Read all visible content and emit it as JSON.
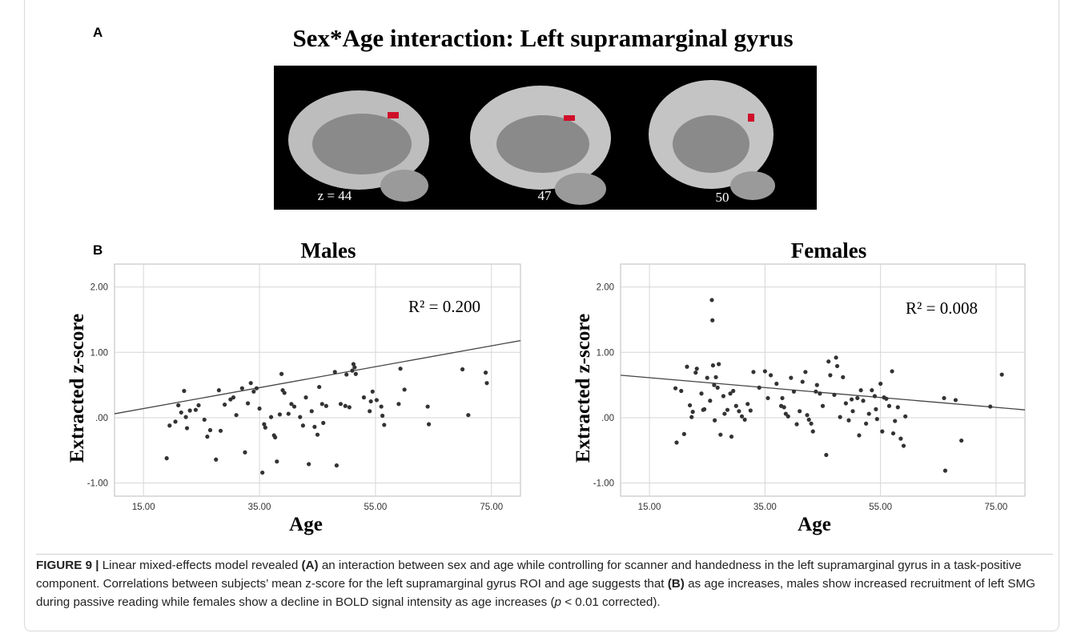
{
  "panel_a": {
    "label": "A",
    "title": "Sex*Age interaction: Left supramarginal gyrus",
    "slice_labels": [
      "z = 44",
      "47",
      "50"
    ]
  },
  "panel_b": {
    "label": "B"
  },
  "chart_data": [
    {
      "type": "scatter",
      "title": "Males",
      "x_label": "Age",
      "y_label": "Extracted z-score",
      "annotation": "R² = 0.200",
      "color": "#333333",
      "grid": true,
      "xlim": [
        10,
        80
      ],
      "xticks": [
        {
          "value": 15,
          "label": "15.00"
        },
        {
          "value": 35,
          "label": "35.00"
        },
        {
          "value": 55,
          "label": "55.00"
        },
        {
          "value": 75,
          "label": "75.00"
        }
      ],
      "ylim": [
        -1.2,
        2.35
      ],
      "yticks": [
        {
          "value": -1,
          "label": "-1.00"
        },
        {
          "value": 0,
          "label": ".00"
        },
        {
          "value": 1,
          "label": "1.00"
        },
        {
          "value": 2,
          "label": "2.00"
        }
      ],
      "x": [
        19,
        19.5,
        20.5,
        21,
        21.5,
        22,
        22.3,
        22.5,
        23,
        24,
        24.5,
        25.5,
        26,
        26.5,
        27.5,
        28,
        28.3,
        29,
        30,
        30.5,
        31,
        32,
        32.5,
        33,
        33.5,
        34,
        34.5,
        35,
        35.5,
        35.8,
        36,
        37,
        37.5,
        37.7,
        38,
        38.5,
        38.8,
        39,
        39.3,
        40,
        40.5,
        41,
        42,
        42.5,
        43,
        43.5,
        44,
        44.5,
        45,
        45.3,
        45.8,
        46,
        46.5,
        48,
        48.3,
        49,
        49.8,
        50,
        50.5,
        51,
        51.2,
        51.4,
        51.6,
        53,
        54,
        54.2,
        54.5,
        55.2,
        56,
        56.2,
        56.5,
        59,
        59.3,
        60,
        64,
        64.2,
        70,
        71,
        74,
        74.2
      ],
      "values": [
        -0.62,
        -0.12,
        -0.06,
        0.19,
        0.08,
        0.41,
        0.01,
        -0.16,
        0.11,
        0.12,
        0.19,
        -0.03,
        -0.29,
        -0.19,
        -0.64,
        0.42,
        -0.2,
        0.2,
        0.28,
        0.31,
        0.04,
        0.45,
        -0.53,
        0.22,
        0.53,
        0.4,
        0.45,
        0.14,
        -0.84,
        -0.1,
        -0.15,
        0.01,
        -0.27,
        -0.3,
        -0.67,
        0.05,
        0.67,
        0.42,
        0.38,
        0.06,
        0.21,
        0.17,
        0.01,
        -0.12,
        0.31,
        -0.71,
        0.1,
        -0.14,
        -0.26,
        0.47,
        0.21,
        -0.08,
        0.18,
        0.7,
        -0.73,
        0.21,
        0.18,
        0.66,
        0.16,
        0.72,
        0.82,
        0.77,
        0.67,
        0.31,
        0.1,
        0.25,
        0.4,
        0.27,
        0.17,
        0.03,
        -0.11,
        0.21,
        0.75,
        0.43,
        0.17,
        -0.1,
        0.74,
        0.04,
        0.69,
        0.53
      ],
      "trend_line": {
        "x": [
          10,
          80
        ],
        "values": [
          0.06,
          1.18
        ]
      }
    },
    {
      "type": "scatter",
      "title": "Females",
      "x_label": "Age",
      "y_label": "Extracted z-score",
      "annotation": "R² = 0.008",
      "color": "#333333",
      "grid": true,
      "xlim": [
        10,
        80
      ],
      "xticks": [
        {
          "value": 15,
          "label": "15.00"
        },
        {
          "value": 35,
          "label": "35.00"
        },
        {
          "value": 55,
          "label": "55.00"
        },
        {
          "value": 75,
          "label": "75.00"
        }
      ],
      "ylim": [
        -1.2,
        2.35
      ],
      "yticks": [
        {
          "value": -1,
          "label": "-1.00"
        },
        {
          "value": 0,
          "label": ".00"
        },
        {
          "value": 1,
          "label": "1.00"
        },
        {
          "value": 2,
          "label": "2.00"
        }
      ],
      "x": [
        19.5,
        19.7,
        20.5,
        21,
        21.5,
        22,
        22.3,
        22.5,
        23,
        23.2,
        24,
        24.3,
        24.5,
        25,
        25.5,
        25.8,
        25.9,
        26,
        26.2,
        26.3,
        26.5,
        26.8,
        27,
        27.3,
        27.8,
        28,
        28.5,
        29,
        29.2,
        29.5,
        30,
        30.5,
        31,
        31.5,
        32,
        32.5,
        33,
        34,
        35,
        35.5,
        36,
        37,
        37.8,
        38,
        38.3,
        38.6,
        39,
        39.5,
        40,
        40.5,
        41,
        41.5,
        42,
        42.3,
        42.6,
        43,
        43.3,
        43.8,
        44,
        44.5,
        45,
        45.6,
        46,
        46.3,
        47,
        47.3,
        47.5,
        48,
        48.5,
        49,
        49.5,
        50,
        50.2,
        51,
        51.3,
        51.6,
        52,
        52.5,
        53,
        53.5,
        54,
        54.2,
        54.4,
        55,
        55.3,
        55.6,
        56,
        56.5,
        57,
        57.2,
        57.5,
        58,
        58.5,
        59,
        59.3,
        66,
        66.2,
        68,
        69,
        74,
        76
      ],
      "values": [
        0.45,
        -0.38,
        0.41,
        -0.25,
        0.78,
        0.19,
        0.01,
        0.09,
        0.69,
        0.75,
        0.37,
        0.12,
        0.13,
        0.61,
        0.26,
        1.8,
        1.49,
        0.8,
        0.5,
        -0.04,
        0.62,
        0.46,
        0.82,
        -0.26,
        0.33,
        0.06,
        0.12,
        0.37,
        -0.29,
        0.41,
        0.18,
        0.1,
        0.02,
        -0.03,
        0.21,
        0.11,
        0.7,
        0.46,
        0.71,
        0.3,
        0.65,
        0.52,
        0.18,
        0.3,
        0.16,
        0.06,
        0.02,
        0.61,
        0.4,
        -0.1,
        0.1,
        0.55,
        0.7,
        0.04,
        -0.03,
        -0.09,
        -0.21,
        0.4,
        0.5,
        0.37,
        0.18,
        -0.57,
        0.86,
        0.65,
        0.35,
        0.92,
        0.79,
        0.01,
        0.62,
        0.22,
        -0.04,
        0.28,
        0.1,
        0.3,
        -0.27,
        0.42,
        0.26,
        -0.09,
        0.06,
        0.42,
        0.33,
        0.13,
        -0.02,
        0.52,
        -0.21,
        0.31,
        0.29,
        0.18,
        0.71,
        -0.24,
        -0.05,
        0.16,
        -0.32,
        -0.43,
        0.02,
        0.3,
        -0.81,
        0.27,
        -0.35,
        0.17,
        0.66
      ],
      "trend_line": {
        "x": [
          10,
          80
        ],
        "values": [
          0.65,
          0.12
        ]
      }
    }
  ],
  "caption": {
    "segments": [
      {
        "text": "FIGURE 9 |",
        "bold": true
      },
      {
        "text": " Linear mixed-effects model revealed "
      },
      {
        "text": "(A)",
        "bold": true
      },
      {
        "text": " an interaction between sex and age while controlling for scanner and handedness in the left supramarginal gyrus in a task-positive component. Correlations between subjects’ mean z-score for the left supramarginal gyrus ROI and age suggests that "
      },
      {
        "text": "(B)",
        "bold": true
      },
      {
        "text": " as age increases, males show increased recruitment of left SMG during passive reading while females show a decline in BOLD signal intensity as age increases ("
      },
      {
        "text": "p",
        "italic": true
      },
      {
        "text": " < 0.01 corrected)."
      }
    ]
  }
}
